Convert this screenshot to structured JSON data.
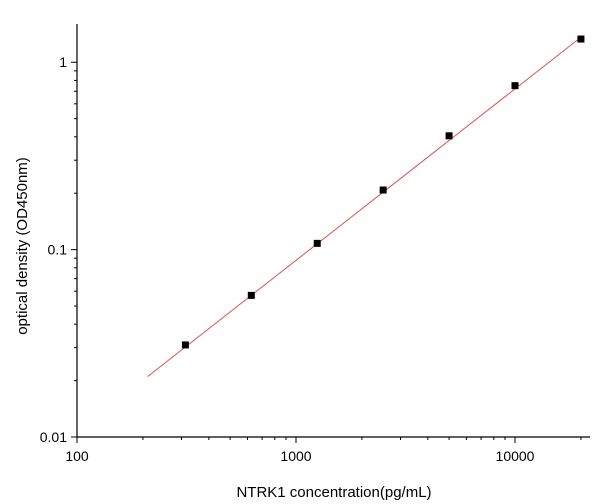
{
  "chart_data": {
    "type": "scatter",
    "title": "",
    "xlabel": "NTRK1 concentration(pg/mL)",
    "ylabel": "optical density (OD450nm)",
    "x_scale": "log",
    "y_scale": "log",
    "xlim": [
      100,
      22000
    ],
    "ylim": [
      0.01,
      1.6
    ],
    "x_ticks": [
      {
        "value": 100,
        "label": "100"
      },
      {
        "value": 1000,
        "label": "1000"
      },
      {
        "value": 10000,
        "label": "10000"
      }
    ],
    "y_ticks": [
      {
        "value": 0.01,
        "label": "0.01"
      },
      {
        "value": 0.1,
        "label": "0.1"
      },
      {
        "value": 1,
        "label": "1"
      }
    ],
    "grid": false,
    "legend": "none",
    "series": [
      {
        "points": [
          {
            "x": 312.5,
            "y": 0.031
          },
          {
            "x": 625,
            "y": 0.057
          },
          {
            "x": 1250,
            "y": 0.108
          },
          {
            "x": 2500,
            "y": 0.208
          },
          {
            "x": 5000,
            "y": 0.405
          },
          {
            "x": 10000,
            "y": 0.75
          },
          {
            "x": 20000,
            "y": 1.33
          }
        ],
        "marker": "square",
        "color": "#000000"
      }
    ],
    "fit_line": {
      "type": "linear-log-log",
      "color": "#d9534f",
      "x_range": [
        210,
        20000
      ],
      "y_range": [
        0.021,
        1.36
      ]
    }
  }
}
